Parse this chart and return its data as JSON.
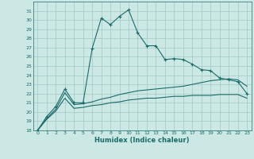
{
  "xlabel": "Humidex (Indice chaleur)",
  "background_color": "#cce8e4",
  "grid_color": "#a0c8c4",
  "line_color": "#1a6b6b",
  "ylim": [
    18,
    32
  ],
  "xlim": [
    -0.5,
    23.5
  ],
  "yticks": [
    18,
    19,
    20,
    21,
    22,
    23,
    24,
    25,
    26,
    27,
    28,
    29,
    30,
    31
  ],
  "xticks": [
    0,
    1,
    2,
    3,
    4,
    5,
    6,
    7,
    8,
    9,
    10,
    11,
    12,
    13,
    14,
    15,
    16,
    17,
    18,
    19,
    20,
    21,
    22,
    23
  ],
  "series1_x": [
    0,
    1,
    2,
    3,
    4,
    5,
    6,
    7,
    8,
    9,
    10,
    11,
    12,
    13,
    14,
    15,
    16,
    17,
    18,
    19,
    20,
    21,
    22,
    23
  ],
  "series1_y": [
    18.0,
    19.5,
    20.6,
    22.5,
    21.0,
    21.0,
    26.9,
    30.2,
    29.5,
    30.4,
    31.1,
    28.6,
    27.2,
    27.2,
    25.7,
    25.8,
    25.7,
    25.2,
    24.6,
    24.5,
    23.7,
    23.5,
    23.3,
    22.0
  ],
  "series2_x": [
    0,
    1,
    2,
    3,
    4,
    5,
    6,
    7,
    8,
    9,
    10,
    11,
    12,
    13,
    14,
    15,
    16,
    17,
    18,
    19,
    20,
    21,
    22,
    23
  ],
  "series2_y": [
    18.0,
    19.3,
    20.3,
    22.1,
    20.8,
    20.9,
    21.1,
    21.4,
    21.6,
    21.9,
    22.1,
    22.3,
    22.4,
    22.5,
    22.6,
    22.7,
    22.8,
    23.0,
    23.2,
    23.4,
    23.5,
    23.6,
    23.5,
    22.8
  ],
  "series3_x": [
    0,
    1,
    2,
    3,
    4,
    5,
    6,
    7,
    8,
    9,
    10,
    11,
    12,
    13,
    14,
    15,
    16,
    17,
    18,
    19,
    20,
    21,
    22,
    23
  ],
  "series3_y": [
    18.0,
    19.2,
    20.1,
    21.5,
    20.4,
    20.5,
    20.7,
    20.8,
    21.0,
    21.1,
    21.3,
    21.4,
    21.5,
    21.5,
    21.6,
    21.7,
    21.7,
    21.8,
    21.8,
    21.8,
    21.9,
    21.9,
    21.9,
    21.5
  ]
}
